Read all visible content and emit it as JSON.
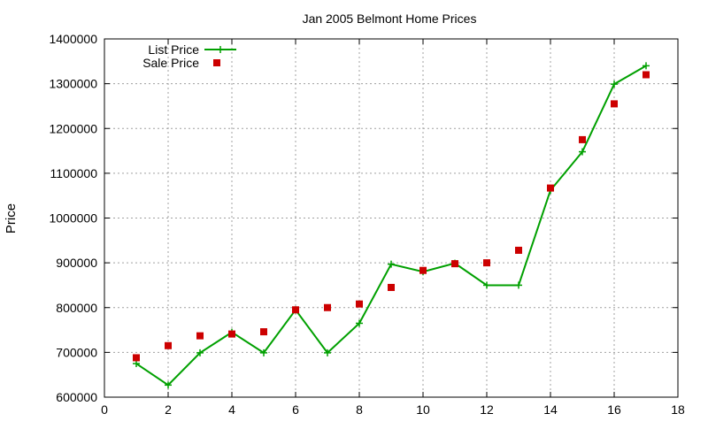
{
  "chart_data": {
    "type": "line",
    "title": "Jan 2005 Belmont Home Prices",
    "xlabel": "",
    "ylabel": "Price",
    "xlim": [
      0,
      18
    ],
    "ylim": [
      600000,
      1400000
    ],
    "x_ticks": [
      0,
      2,
      4,
      6,
      8,
      10,
      12,
      14,
      16,
      18
    ],
    "y_ticks": [
      600000,
      700000,
      800000,
      900000,
      1000000,
      1100000,
      1200000,
      1300000,
      1400000
    ],
    "grid": true,
    "legend_position": "top-left",
    "series": [
      {
        "name": "List Price",
        "style": "line+cross",
        "color": "#00a000",
        "x": [
          1,
          2,
          3,
          4,
          5,
          6,
          7,
          8,
          9,
          10,
          11,
          12,
          13,
          14,
          15,
          16,
          17
        ],
        "values": [
          675000,
          627000,
          699000,
          745000,
          699000,
          795000,
          699000,
          765000,
          897000,
          880000,
          899000,
          850000,
          850000,
          1062000,
          1148000,
          1299000,
          1340000
        ]
      },
      {
        "name": "Sale Price",
        "style": "points-square",
        "color": "#cc0000",
        "x": [
          1,
          2,
          3,
          4,
          5,
          6,
          7,
          8,
          9,
          10,
          11,
          12,
          13,
          14,
          15,
          16,
          17
        ],
        "values": [
          688000,
          715000,
          737000,
          741000,
          746000,
          795000,
          800000,
          808000,
          845000,
          883000,
          898000,
          900000,
          928000,
          1067000,
          1175000,
          1255000,
          1320000
        ]
      }
    ]
  }
}
